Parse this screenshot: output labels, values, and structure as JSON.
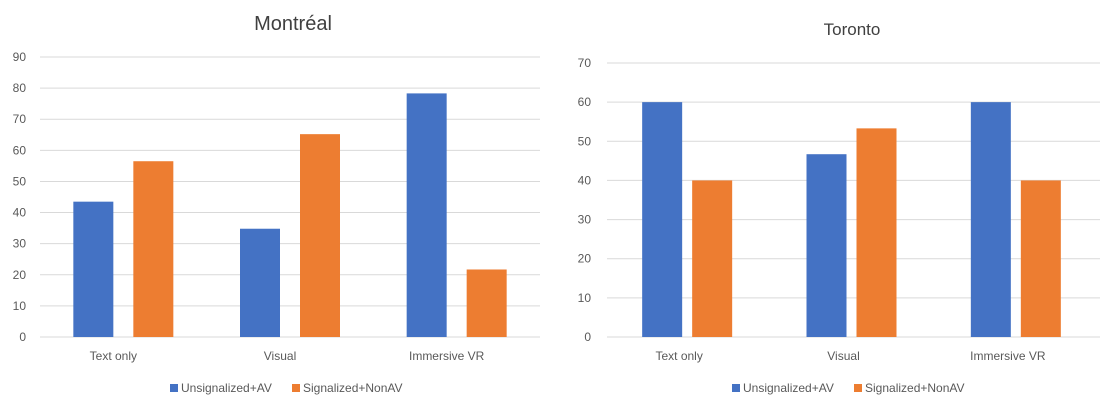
{
  "chart_data": [
    {
      "type": "bar",
      "title": "Montréal",
      "categories": [
        "Text only",
        "Visual",
        "Immersive VR"
      ],
      "series": [
        {
          "name": "Unsignalized+AV",
          "values": [
            43.5,
            34.8,
            78.3
          ],
          "color": "#4472c4"
        },
        {
          "name": "Signalized+NonAV",
          "values": [
            56.5,
            65.2,
            21.7
          ],
          "color": "#ed7d31"
        }
      ],
      "ylim": [
        0,
        90
      ],
      "yticks": [
        0,
        10,
        20,
        30,
        40,
        50,
        60,
        70,
        80,
        90
      ],
      "grid": true,
      "legend": "bottom"
    },
    {
      "type": "bar",
      "title": "Toronto",
      "categories": [
        "Text only",
        "Visual",
        "Immersive VR"
      ],
      "series": [
        {
          "name": "Unsignalized+AV",
          "values": [
            60,
            46.7,
            60
          ],
          "color": "#4472c4"
        },
        {
          "name": "Signalized+NonAV",
          "values": [
            40,
            53.3,
            40
          ],
          "color": "#ed7d31"
        }
      ],
      "ylim": [
        0,
        70
      ],
      "yticks": [
        0,
        10,
        20,
        30,
        40,
        50,
        60,
        70
      ],
      "grid": true,
      "legend": "bottom"
    }
  ]
}
